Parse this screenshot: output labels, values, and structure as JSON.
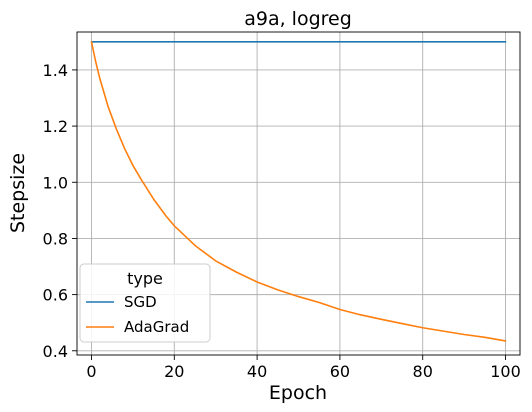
{
  "chart_data": {
    "type": "line",
    "title": "a9a, logreg",
    "xlabel": "Epoch",
    "ylabel": "Stepsize",
    "xlim": [
      -3.5,
      103.5
    ],
    "ylim": [
      0.385,
      1.535
    ],
    "xticks": [
      0,
      20,
      40,
      60,
      80,
      100
    ],
    "xtick_labels": [
      "0",
      "20",
      "40",
      "60",
      "80",
      "100"
    ],
    "yticks": [
      0.4,
      0.6,
      0.8,
      1.0,
      1.2,
      1.4
    ],
    "ytick_labels": [
      "0.4",
      "0.6",
      "0.8",
      "1.0",
      "1.2",
      "1.4"
    ],
    "grid": true,
    "legend": {
      "title": "type",
      "placement": "lower-left"
    },
    "series": [
      {
        "name": "SGD",
        "color": "#1f77b4",
        "x": [
          0,
          10,
          20,
          30,
          40,
          50,
          60,
          70,
          80,
          90,
          100
        ],
        "y": [
          1.5,
          1.5,
          1.5,
          1.5,
          1.5,
          1.5,
          1.5,
          1.5,
          1.5,
          1.5,
          1.5
        ]
      },
      {
        "name": "AdaGrad",
        "color": "#ff7f0e",
        "x": [
          0,
          1,
          2,
          3,
          4,
          5,
          6,
          8,
          10,
          12,
          15,
          18,
          20,
          25,
          30,
          35,
          40,
          45,
          50,
          55,
          60,
          65,
          70,
          75,
          80,
          85,
          90,
          95,
          100
        ],
        "y": [
          1.5,
          1.43,
          1.37,
          1.32,
          1.27,
          1.23,
          1.19,
          1.12,
          1.06,
          1.01,
          0.94,
          0.88,
          0.845,
          0.775,
          0.72,
          0.68,
          0.645,
          0.617,
          0.593,
          0.572,
          0.547,
          0.528,
          0.512,
          0.497,
          0.482,
          0.47,
          0.458,
          0.448,
          0.435
        ]
      }
    ]
  }
}
